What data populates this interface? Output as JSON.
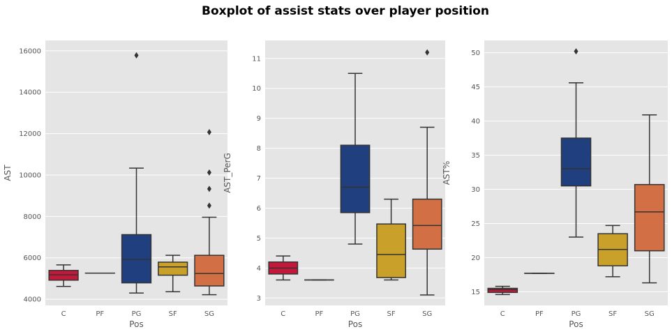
{
  "title": "Boxplot of assist stats over  player position",
  "colors": {
    "panel_bg": "#E5E5E5",
    "grid": "#FFFFFF",
    "line": "#333333",
    "palette": [
      "#C4183A",
      "#C41E3A",
      "#1F3F7F",
      "#C9A02A",
      "#D36F44"
    ]
  },
  "chart_data": [
    {
      "type": "box",
      "xlabel": "Pos",
      "ylabel": "AST",
      "categories": [
        "C",
        "PF",
        "PG",
        "SF",
        "SG"
      ],
      "ylim": [
        3700,
        16500
      ],
      "yticks": [
        4000,
        6000,
        8000,
        10000,
        12000,
        14000,
        16000
      ],
      "grid": true,
      "boxes": [
        {
          "cat": "C",
          "whislo": 4620,
          "q1": 4920,
          "med": 5180,
          "q3": 5390,
          "whishi": 5660,
          "fliers": []
        },
        {
          "cat": "PF",
          "whislo": 5260,
          "q1": 5260,
          "med": 5260,
          "q3": 5260,
          "whishi": 5260,
          "fliers": []
        },
        {
          "cat": "PG",
          "whislo": 4300,
          "q1": 4790,
          "med": 5920,
          "q3": 7120,
          "whishi": 10330,
          "fliers": [
            15780
          ]
        },
        {
          "cat": "SF",
          "whislo": 4360,
          "q1": 5160,
          "med": 5560,
          "q3": 5790,
          "whishi": 6120,
          "fliers": []
        },
        {
          "cat": "SG",
          "whislo": 4220,
          "q1": 4640,
          "med": 5240,
          "q3": 6120,
          "whishi": 7960,
          "fliers": [
            8520,
            9330,
            10120,
            12070
          ]
        }
      ]
    },
    {
      "type": "box",
      "xlabel": "Pos",
      "ylabel": "AST_PerG",
      "categories": [
        "C",
        "PF",
        "PG",
        "SF",
        "SG"
      ],
      "ylim": [
        2.75,
        11.6
      ],
      "yticks": [
        3,
        4,
        5,
        6,
        7,
        8,
        9,
        10,
        11
      ],
      "grid": true,
      "boxes": [
        {
          "cat": "C",
          "whislo": 3.6,
          "q1": 3.8,
          "med": 4.0,
          "q3": 4.2,
          "whishi": 4.4,
          "fliers": []
        },
        {
          "cat": "PF",
          "whislo": 3.6,
          "q1": 3.6,
          "med": 3.6,
          "q3": 3.6,
          "whishi": 3.6,
          "fliers": []
        },
        {
          "cat": "PG",
          "whislo": 4.8,
          "q1": 5.85,
          "med": 6.7,
          "q3": 8.1,
          "whishi": 10.5,
          "fliers": []
        },
        {
          "cat": "SF",
          "whislo": 3.6,
          "q1": 3.68,
          "med": 4.45,
          "q3": 5.47,
          "whishi": 6.3,
          "fliers": []
        },
        {
          "cat": "SG",
          "whislo": 3.1,
          "q1": 4.63,
          "med": 5.42,
          "q3": 6.3,
          "whishi": 8.7,
          "fliers": [
            11.2
          ]
        }
      ]
    },
    {
      "type": "box",
      "xlabel": "Pos",
      "ylabel": "AST%",
      "categories": [
        "C",
        "PF",
        "PG",
        "SF",
        "SG"
      ],
      "ylim": [
        13.0,
        51.8
      ],
      "yticks": [
        15,
        20,
        25,
        30,
        35,
        40,
        45,
        50
      ],
      "grid": true,
      "boxes": [
        {
          "cat": "C",
          "whislo": 14.6,
          "q1": 14.9,
          "med": 15.3,
          "q3": 15.5,
          "whishi": 15.8,
          "fliers": []
        },
        {
          "cat": "PF",
          "whislo": 17.7,
          "q1": 17.7,
          "med": 17.7,
          "q3": 17.7,
          "whishi": 17.7,
          "fliers": []
        },
        {
          "cat": "PG",
          "whislo": 23.0,
          "q1": 30.5,
          "med": 33.0,
          "q3": 37.5,
          "whishi": 45.6,
          "fliers": [
            50.2
          ]
        },
        {
          "cat": "SF",
          "whislo": 17.2,
          "q1": 18.8,
          "med": 21.2,
          "q3": 23.5,
          "whishi": 24.7,
          "fliers": []
        },
        {
          "cat": "SG",
          "whislo": 16.3,
          "q1": 21.0,
          "med": 26.7,
          "q3": 30.7,
          "whishi": 40.9,
          "fliers": []
        }
      ]
    }
  ]
}
